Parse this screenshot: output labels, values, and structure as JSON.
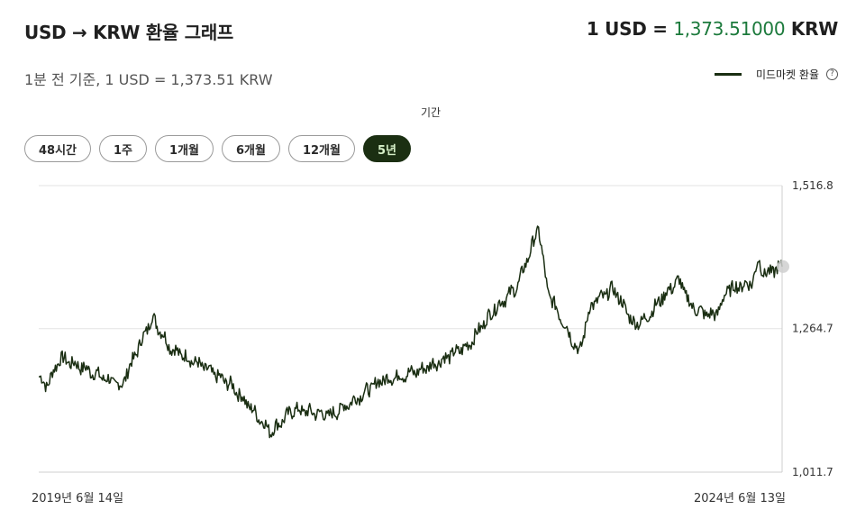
{
  "header": {
    "title": "USD → KRW 환율 그래프",
    "rate_prefix": "1 USD = ",
    "rate_value": "1,373.51000",
    "rate_suffix": " KRW",
    "subtitle": "1분 전 기준, 1 USD = 1,373.51 KRW"
  },
  "legend": {
    "label": "미드마켓 환율",
    "info_icon": "?"
  },
  "period": {
    "label": "기간",
    "options": [
      "48시간",
      "1주",
      "1개월",
      "6개월",
      "12개월",
      "5년"
    ],
    "selected": "5년"
  },
  "colors": {
    "line": "#1a2e12",
    "accent": "#1c7a3c",
    "active_button": "#1b2f12"
  },
  "chart_data": {
    "type": "line",
    "title": "USD → KRW 환율 그래프",
    "series": [
      {
        "name": "미드마켓 환율",
        "x": [
          "2019-06-14",
          "2019-07-04",
          "2019-08-05",
          "2019-10-01",
          "2020-01-02",
          "2020-03-19",
          "2020-05-04",
          "2020-07-15",
          "2020-10-01",
          "2021-01-04",
          "2021-03-01",
          "2021-06-01",
          "2021-08-03",
          "2021-10-01",
          "2022-01-03",
          "2022-03-02",
          "2022-05-04",
          "2022-07-05",
          "2022-09-01",
          "2022-10-24",
          "2022-11-15",
          "2023-01-02",
          "2023-02-01",
          "2023-02-28",
          "2023-04-26",
          "2023-06-16",
          "2023-07-15",
          "2023-09-01",
          "2023-10-04",
          "2023-11-02",
          "2023-12-01",
          "2024-01-02",
          "2024-02-01",
          "2024-04-01",
          "2024-04-16",
          "2024-05-01",
          "2024-06-13"
        ],
        "values": [
          1180,
          1164,
          1213,
          1196,
          1163,
          1285,
          1230,
          1200,
          1164,
          1083,
          1122,
          1112,
          1142,
          1173,
          1190,
          1210,
          1235,
          1298,
          1338,
          1442,
          1329,
          1264,
          1221,
          1305,
          1335,
          1272,
          1283,
          1327,
          1350,
          1305,
          1292,
          1288,
          1334,
          1346,
          1387,
          1360,
          1374
        ]
      }
    ],
    "y_ticks": [
      "1,516.8",
      "1,264.7",
      "1,011.7"
    ],
    "ylim": [
      1011.7,
      1516.8
    ],
    "x_start_label": "2019년 6월 14일",
    "x_end_label": "2024년 6월 13일",
    "grid": true
  }
}
